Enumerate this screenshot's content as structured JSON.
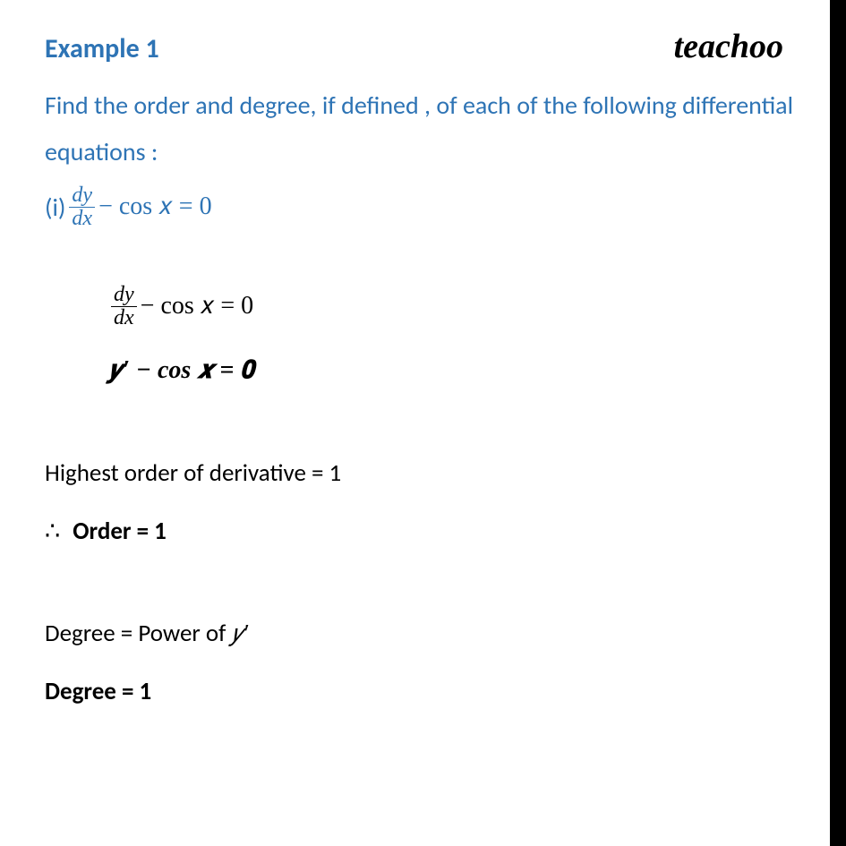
{
  "colors": {
    "heading": "#2e74b5",
    "body": "#000000",
    "background": "#ffffff",
    "sidebar": "#000000"
  },
  "header": {
    "title": "Example 1",
    "logo": "teachoo"
  },
  "question": {
    "prompt": "Find the order and degree, if defined , of each of the following differential equations :",
    "part_label": "(i)",
    "frac_num": "dy",
    "frac_den": "dx",
    "eq_rest": " − cos 𝑥 = 0"
  },
  "solution": {
    "step1_frac_num": "dy",
    "step1_frac_den": "dx",
    "step1_rest": " − cos 𝑥 = 0",
    "step2": "𝒚′ − cos 𝒙 = 𝟎",
    "highest": "Highest order of derivative = 1",
    "therefore_sym": "∴",
    "order": "Order = 1",
    "degree_def_pre": "Degree = Power of ",
    "degree_def_var": "𝑦′",
    "degree": "Degree = 1"
  }
}
